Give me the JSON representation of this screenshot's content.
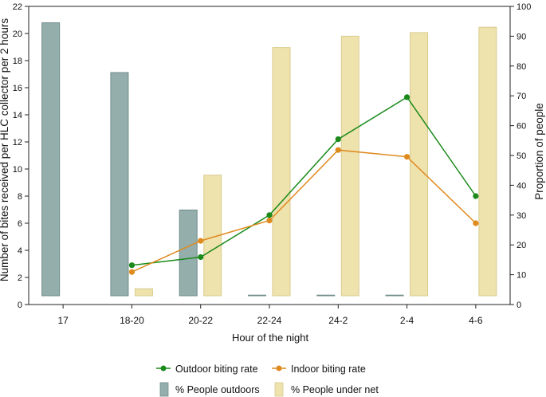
{
  "chart_data": {
    "type": "bar+line",
    "categories": [
      "17",
      "18-20",
      "20-22",
      "22-24",
      "24-2",
      "2-4",
      "4-6"
    ],
    "xlabel": "Hour of the night",
    "ylabel_left": "Number of bites received per HLC collector per 2 hours",
    "ylabel_right": "Proportion of people",
    "ylim_left": [
      0,
      22
    ],
    "ylim_right": [
      0,
      100
    ],
    "yticks_left": [
      "0",
      "2",
      "4",
      "6",
      "8",
      "10",
      "12",
      "14",
      "16",
      "18",
      "20",
      "22"
    ],
    "yticks_right": [
      "0",
      "10",
      "20",
      "30",
      "40",
      "50",
      "60",
      "70",
      "80",
      "90",
      "100"
    ],
    "bar_series": [
      {
        "name": "% People outdoors",
        "axis": "right",
        "color": "#94aeac",
        "values": [
          94.5,
          77.8,
          31.7,
          2.2,
          0.4,
          0.4,
          null
        ]
      },
      {
        "name": "% People under net",
        "axis": "right",
        "color": "#eee2ad",
        "values": [
          null,
          5.3,
          43.4,
          86.2,
          90.0,
          91.2,
          93.0
        ]
      }
    ],
    "line_series": [
      {
        "name": "Outdoor biting rate",
        "axis": "left",
        "color": "#1a8a1a",
        "values": [
          null,
          2.9,
          3.5,
          6.6,
          12.2,
          15.3,
          8.0
        ]
      },
      {
        "name": "Indoor biting rate",
        "axis": "left",
        "color": "#e08a1e",
        "values": [
          null,
          2.4,
          4.7,
          6.2,
          11.4,
          10.9,
          6.0
        ]
      }
    ],
    "legend": {
      "placement": "bottom",
      "items": [
        "Outdoor biting rate",
        "Indoor biting rate",
        "% People outdoors",
        "% People under net"
      ]
    }
  }
}
